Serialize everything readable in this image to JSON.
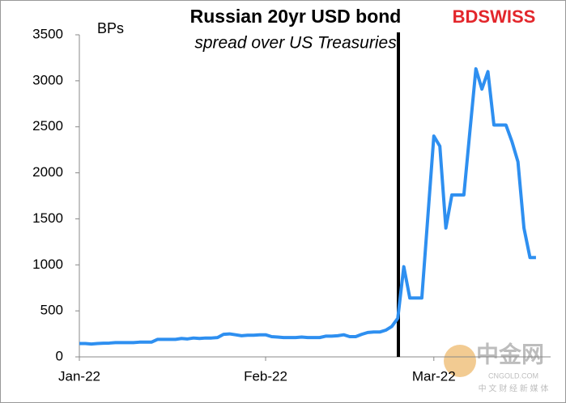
{
  "chart_data": {
    "type": "line",
    "title": "Russian 20yr USD bond",
    "subtitle": "spread over US Treasuries",
    "y_label": "BPs",
    "logo": "BDSWISS",
    "watermark": {
      "name": "中金网",
      "site": "CNGOLD.COM",
      "tagline": "中 文 财 经 新 媒 体"
    },
    "categories": [
      "Jan-22",
      null,
      null,
      null,
      null,
      null,
      null,
      null,
      null,
      null,
      null,
      null,
      null,
      null,
      null,
      null,
      null,
      null,
      null,
      null,
      null,
      null,
      null,
      null,
      null,
      null,
      null,
      null,
      null,
      null,
      null,
      "Feb-22",
      null,
      null,
      null,
      null,
      null,
      null,
      null,
      null,
      null,
      null,
      null,
      null,
      null,
      null,
      null,
      null,
      null,
      null,
      null,
      null,
      null,
      null,
      null,
      null,
      null,
      null,
      null,
      "Mar-22",
      null,
      null,
      null,
      null,
      null,
      null,
      null,
      null,
      null,
      null,
      null,
      null,
      null,
      null,
      null,
      null,
      null
    ],
    "values": [
      145,
      145,
      140,
      145,
      148,
      150,
      155,
      155,
      155,
      155,
      160,
      160,
      160,
      190,
      190,
      190,
      190,
      200,
      195,
      205,
      200,
      205,
      205,
      210,
      245,
      250,
      240,
      230,
      235,
      235,
      240,
      240,
      220,
      215,
      210,
      210,
      210,
      215,
      210,
      210,
      210,
      225,
      225,
      230,
      240,
      220,
      220,
      245,
      265,
      270,
      270,
      290,
      330,
      420,
      980,
      640,
      640,
      640,
      1520,
      2400,
      2290,
      1400,
      1760,
      1760,
      1760,
      2450,
      3130,
      2910,
      3100,
      2520,
      2520,
      2520,
      2340,
      2120,
      1400,
      1080,
      1080
    ],
    "color": "#2e8ff0",
    "ylim": [
      0,
      3500
    ],
    "yticks": [
      0,
      500,
      1000,
      1500,
      2000,
      2500,
      3000,
      3500
    ],
    "grid": false
  }
}
